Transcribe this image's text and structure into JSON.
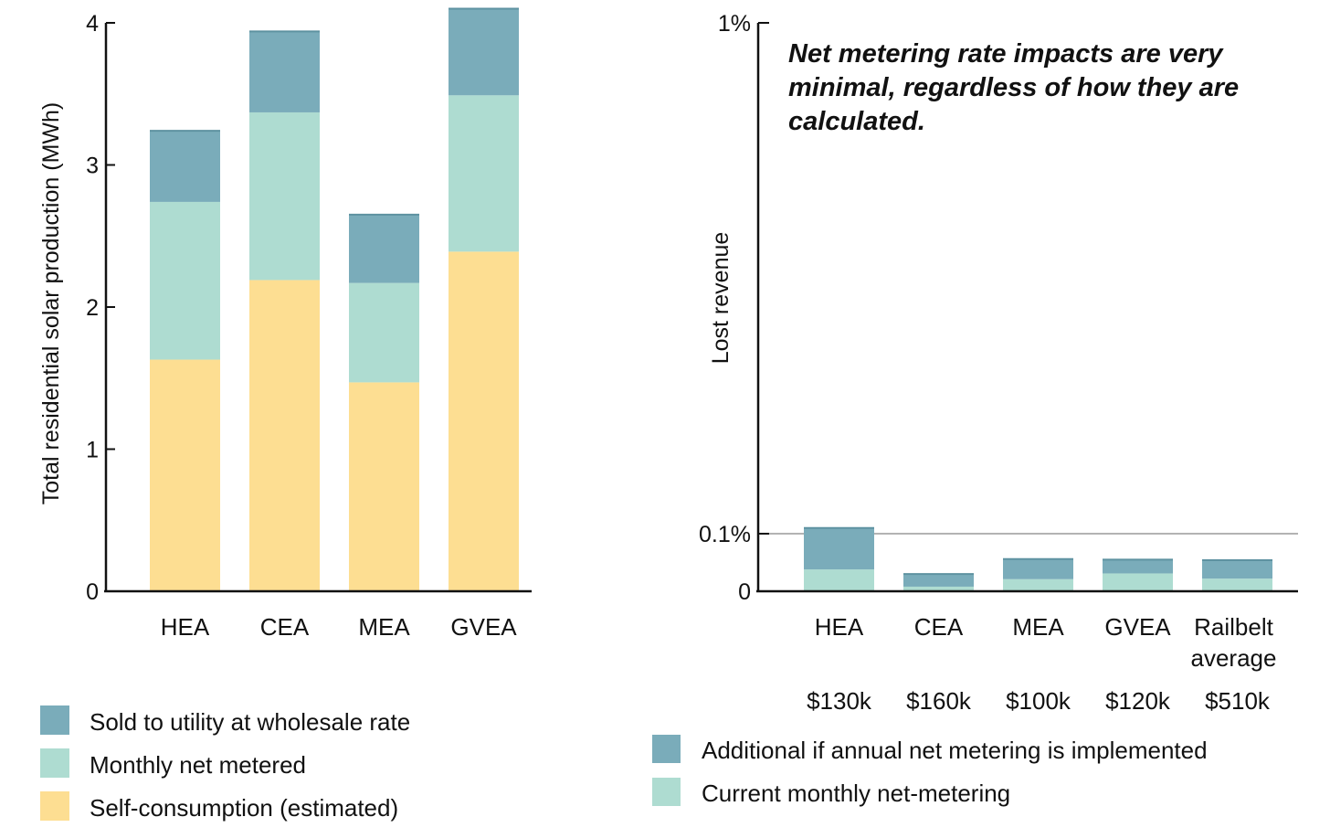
{
  "colors": {
    "wholesale": "#7aacba",
    "net_metered": "#aedcd1",
    "self": "#fdde92",
    "annual_additional": "#7aacba",
    "monthly_current": "#aedcd1"
  },
  "chart_data": [
    {
      "type": "bar",
      "stacked": true,
      "categories": [
        "HEA",
        "CEA",
        "MEA",
        "GVEA"
      ],
      "series": [
        {
          "name": "Self-consumption (estimated)",
          "values": [
            1.63,
            2.19,
            1.47,
            2.39
          ]
        },
        {
          "name": "Monthly net metered",
          "values": [
            1.11,
            1.18,
            0.7,
            1.1
          ]
        },
        {
          "name": "Sold to utility at wholesale rate",
          "values": [
            0.5,
            0.57,
            0.48,
            0.61
          ]
        }
      ],
      "ylabel": "Total residential solar production (MWh)",
      "ylim": [
        0,
        4
      ],
      "yticks": [
        "0",
        "1",
        "2",
        "3",
        "4"
      ],
      "legend": [
        "Sold to utility at wholesale rate",
        "Monthly net metered",
        "Self-consumption (estimated)"
      ],
      "legend_position": "bottom-left"
    },
    {
      "type": "bar",
      "stacked": true,
      "scale": "log-like (0, 0.1%, 1%)",
      "categories": [
        "HEA",
        "CEA",
        "MEA",
        "GVEA",
        "Railbelt average"
      ],
      "category_lines": [
        [
          "HEA"
        ],
        [
          "CEA"
        ],
        [
          "MEA"
        ],
        [
          "GVEA"
        ],
        [
          "Railbelt",
          "average"
        ]
      ],
      "series": [
        {
          "name": "Current monthly net-metering",
          "values": [
            0.038,
            0.008,
            0.021,
            0.031,
            0.022
          ]
        },
        {
          "name": "Additional if annual net metering is implemented",
          "values": [
            0.072,
            0.022,
            0.035,
            0.024,
            0.032
          ]
        }
      ],
      "ylabel": "Lost revenue",
      "ytick_labels": [
        "0",
        "0.1%",
        "1%"
      ],
      "reference_line": 0.1,
      "costs": [
        "$130k",
        "$160k",
        "$100k",
        "$120k",
        "$510k"
      ],
      "annotation": [
        "Net metering rate impacts are very",
        "minimal, regardless of how they are",
        "calculated."
      ],
      "legend": [
        "Additional if annual net metering is implemented",
        "Current monthly net-metering"
      ],
      "legend_position": "bottom"
    }
  ]
}
